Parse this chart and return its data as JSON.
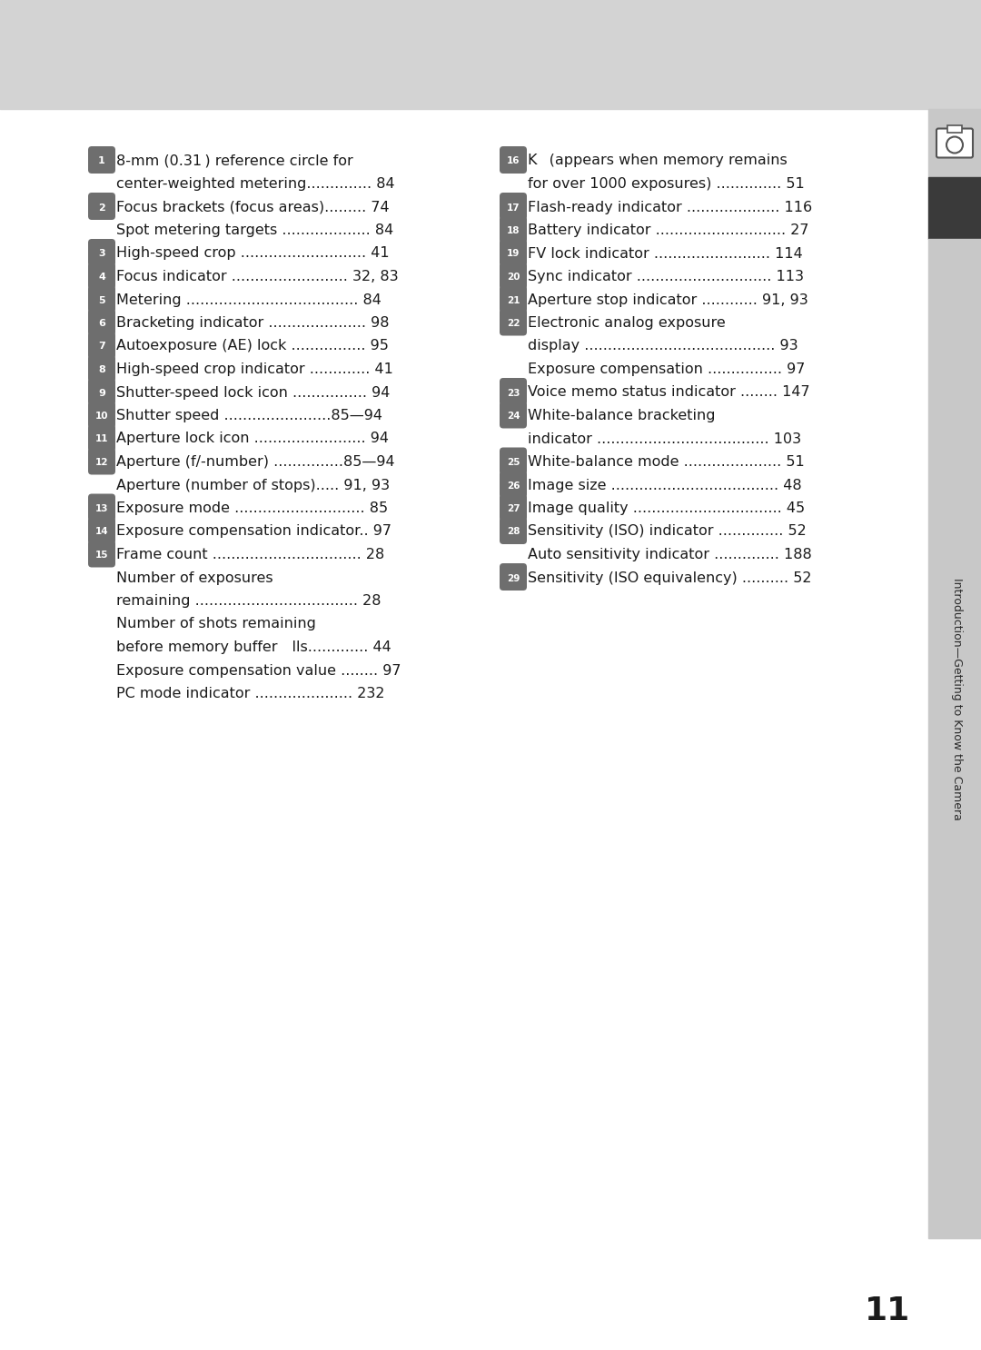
{
  "bg_top_color": "#d3d3d3",
  "content_bg": "#ffffff",
  "number_badge_color": "#6e6e6e",
  "number_badge_text_color": "#ffffff",
  "text_color": "#1a1a1a",
  "page_number": "11",
  "sidebar_text": "Introduction—Getting to Know the Camera",
  "left_items": [
    {
      "num": "1",
      "lines": [
        "8-mm (0.31 ) reference circle for",
        "center-weighted metering.............. 84"
      ]
    },
    {
      "num": "2",
      "lines": [
        "Focus brackets (focus areas)......... 74",
        "Spot metering targets ................... 84"
      ]
    },
    {
      "num": "3",
      "lines": [
        "High-speed crop ........................... 41"
      ]
    },
    {
      "num": "4",
      "lines": [
        "Focus indicator ......................... 32, 83"
      ]
    },
    {
      "num": "5",
      "lines": [
        "Metering ..................................... 84"
      ]
    },
    {
      "num": "6",
      "lines": [
        "Bracketing indicator ..................... 98"
      ]
    },
    {
      "num": "7",
      "lines": [
        "Autoexposure (AE) lock ................ 95"
      ]
    },
    {
      "num": "8",
      "lines": [
        "High-speed crop indicator ............. 41"
      ]
    },
    {
      "num": "9",
      "lines": [
        "Shutter-speed lock icon ................ 94"
      ]
    },
    {
      "num": "10",
      "lines": [
        "Shutter speed .......................85—94"
      ]
    },
    {
      "num": "11",
      "lines": [
        "Aperture lock icon ........................ 94"
      ]
    },
    {
      "num": "12",
      "lines": [
        "Aperture (f/-number) ...............85—94",
        "Aperture (number of stops)..... 91, 93"
      ]
    },
    {
      "num": "13",
      "lines": [
        "Exposure mode ............................ 85"
      ]
    },
    {
      "num": "14",
      "lines": [
        "Exposure compensation indicator.. 97"
      ]
    },
    {
      "num": "15",
      "lines": [
        "Frame count ................................ 28",
        "Number of exposures",
        "remaining ................................... 28",
        "Number of shots remaining",
        "before memory buffer lls............. 44",
        "Exposure compensation value ........ 97",
        "PC mode indicator ..................... 232"
      ]
    }
  ],
  "right_items": [
    {
      "num": "16",
      "lines": [
        "K  (appears when memory remains",
        "for over 1000 exposures) .............. 51"
      ]
    },
    {
      "num": "17",
      "lines": [
        "Flash-ready indicator .................... 116"
      ]
    },
    {
      "num": "18",
      "lines": [
        "Battery indicator ............................ 27"
      ]
    },
    {
      "num": "19",
      "lines": [
        "FV lock indicator ......................... 114"
      ]
    },
    {
      "num": "20",
      "lines": [
        "Sync indicator ............................. 113"
      ]
    },
    {
      "num": "21",
      "lines": [
        "Aperture stop indicator ............ 91, 93"
      ]
    },
    {
      "num": "22",
      "lines": [
        "Electronic analog exposure",
        "display ......................................... 93",
        "Exposure compensation ................ 97"
      ]
    },
    {
      "num": "23",
      "lines": [
        "Voice memo status indicator ........ 147"
      ]
    },
    {
      "num": "24",
      "lines": [
        "White-balance bracketing",
        "indicator ..................................... 103"
      ]
    },
    {
      "num": "25",
      "lines": [
        "White-balance mode ..................... 51"
      ]
    },
    {
      "num": "26",
      "lines": [
        "Image size .................................... 48"
      ]
    },
    {
      "num": "27",
      "lines": [
        "Image quality ................................ 45"
      ]
    },
    {
      "num": "28",
      "lines": [
        "Sensitivity (ISO) indicator .............. 52",
        "Auto sensitivity indicator .............. 188"
      ]
    },
    {
      "num": "29",
      "lines": [
        "Sensitivity (ISO equivalency) .......... 52"
      ]
    }
  ]
}
